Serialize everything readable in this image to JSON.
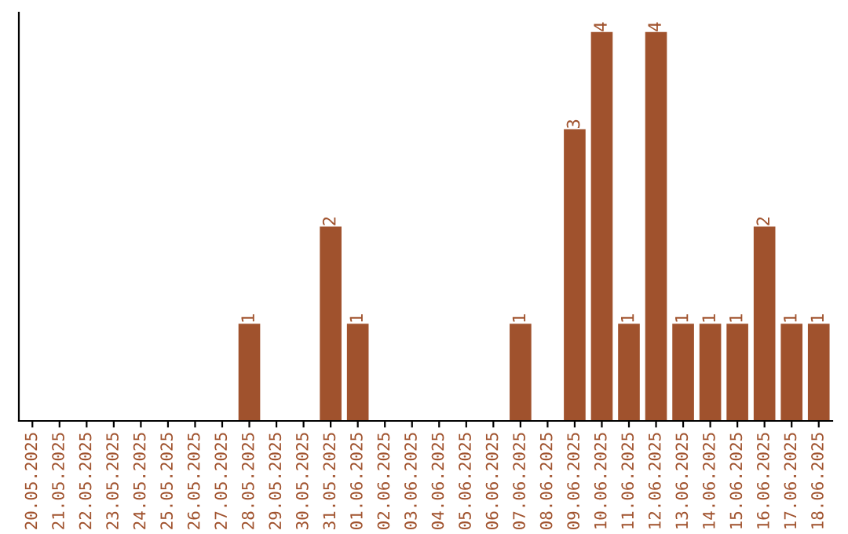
{
  "chart_data": {
    "type": "bar",
    "categories": [
      "20.05.2025",
      "21.05.2025",
      "22.05.2025",
      "23.05.2025",
      "24.05.2025",
      "25.05.2025",
      "26.05.2025",
      "27.05.2025",
      "28.05.2025",
      "29.05.2025",
      "30.05.2025",
      "31.05.2025",
      "01.06.2025",
      "02.06.2025",
      "03.06.2025",
      "04.06.2025",
      "05.06.2025",
      "06.06.2025",
      "07.06.2025",
      "08.06.2025",
      "09.06.2025",
      "10.06.2025",
      "11.06.2025",
      "12.06.2025",
      "13.06.2025",
      "14.06.2025",
      "15.06.2025",
      "16.06.2025",
      "17.06.2025",
      "18.06.2025"
    ],
    "values": [
      0,
      0,
      0,
      0,
      0,
      0,
      0,
      0,
      1,
      0,
      0,
      2,
      1,
      0,
      0,
      0,
      0,
      0,
      1,
      0,
      3,
      4,
      1,
      4,
      1,
      1,
      1,
      2,
      1,
      1
    ],
    "value_labels": [
      null,
      null,
      null,
      null,
      null,
      null,
      null,
      null,
      "1",
      null,
      null,
      "2",
      "1",
      null,
      null,
      null,
      null,
      null,
      "1",
      null,
      "3",
      "4",
      "1",
      "4",
      "1",
      "1",
      "1",
      "2",
      "1",
      "1"
    ],
    "color": "#a0522d",
    "tick_labels": "x",
    "grid": false
  }
}
